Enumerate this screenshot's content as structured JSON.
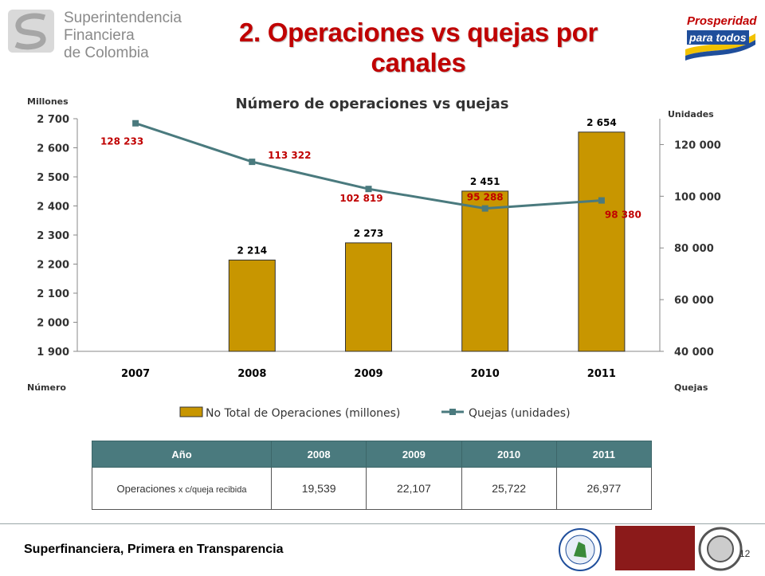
{
  "header": {
    "org_logo": {
      "line1": "Superintendencia",
      "line2": "Financiera",
      "line3": "de Colombia"
    },
    "title": "2. Operaciones vs quejas por canales",
    "right_logo": {
      "line1": "Prosperidad",
      "line2": "para todos"
    }
  },
  "chart_data": {
    "type": "bar+line",
    "title": "Número de operaciones vs quejas",
    "categories": [
      "2007",
      "2008",
      "2009",
      "2010",
      "2011"
    ],
    "y_left": {
      "unit_label": "Millones",
      "axis_title": "Número",
      "ylim": [
        1900,
        2700
      ],
      "ticks": [
        1900,
        2000,
        2100,
        2200,
        2300,
        2400,
        2500,
        2600,
        2700
      ],
      "tick_labels": [
        "1 900",
        "2 000",
        "2 100",
        "2 200",
        "2 300",
        "2 400",
        "2 500",
        "2 600",
        "2 700"
      ]
    },
    "y_right": {
      "unit_label": "Unidades",
      "axis_title": "Quejas",
      "ylim": [
        40000,
        130000
      ],
      "ticks": [
        40000,
        60000,
        80000,
        100000,
        120000
      ],
      "tick_labels": [
        "40 000",
        "60 000",
        "80 000",
        "100 000",
        "120 000"
      ]
    },
    "series": [
      {
        "name": "No Total de Operaciones (millones)",
        "kind": "bar",
        "axis": "left",
        "color": "#c89600",
        "values": [
          null,
          2214,
          2273,
          2451,
          2654
        ],
        "labels": [
          "",
          "2 214",
          "2 273",
          "2 451",
          "2 654"
        ]
      },
      {
        "name": "Quejas (unidades)",
        "kind": "line",
        "axis": "right",
        "color": "#4a7a7e",
        "label_color": "#c00000",
        "values": [
          128233,
          113322,
          102819,
          95288,
          98380
        ],
        "labels": [
          "128 233",
          "113 322",
          "102 819",
          "95 288",
          "98 380"
        ]
      }
    ],
    "legend_position": "bottom",
    "grid": false
  },
  "table": {
    "header": [
      "Año",
      "2008",
      "2009",
      "2010",
      "2011"
    ],
    "row_label_main": "Operaciones",
    "row_label_small": "x c/queja recibida",
    "row_values": [
      "19,539",
      "22,107",
      "25,722",
      "26,977"
    ]
  },
  "footer": {
    "tagline": "Superfinanciera, Primera en Transparencia",
    "page_number": "12"
  }
}
